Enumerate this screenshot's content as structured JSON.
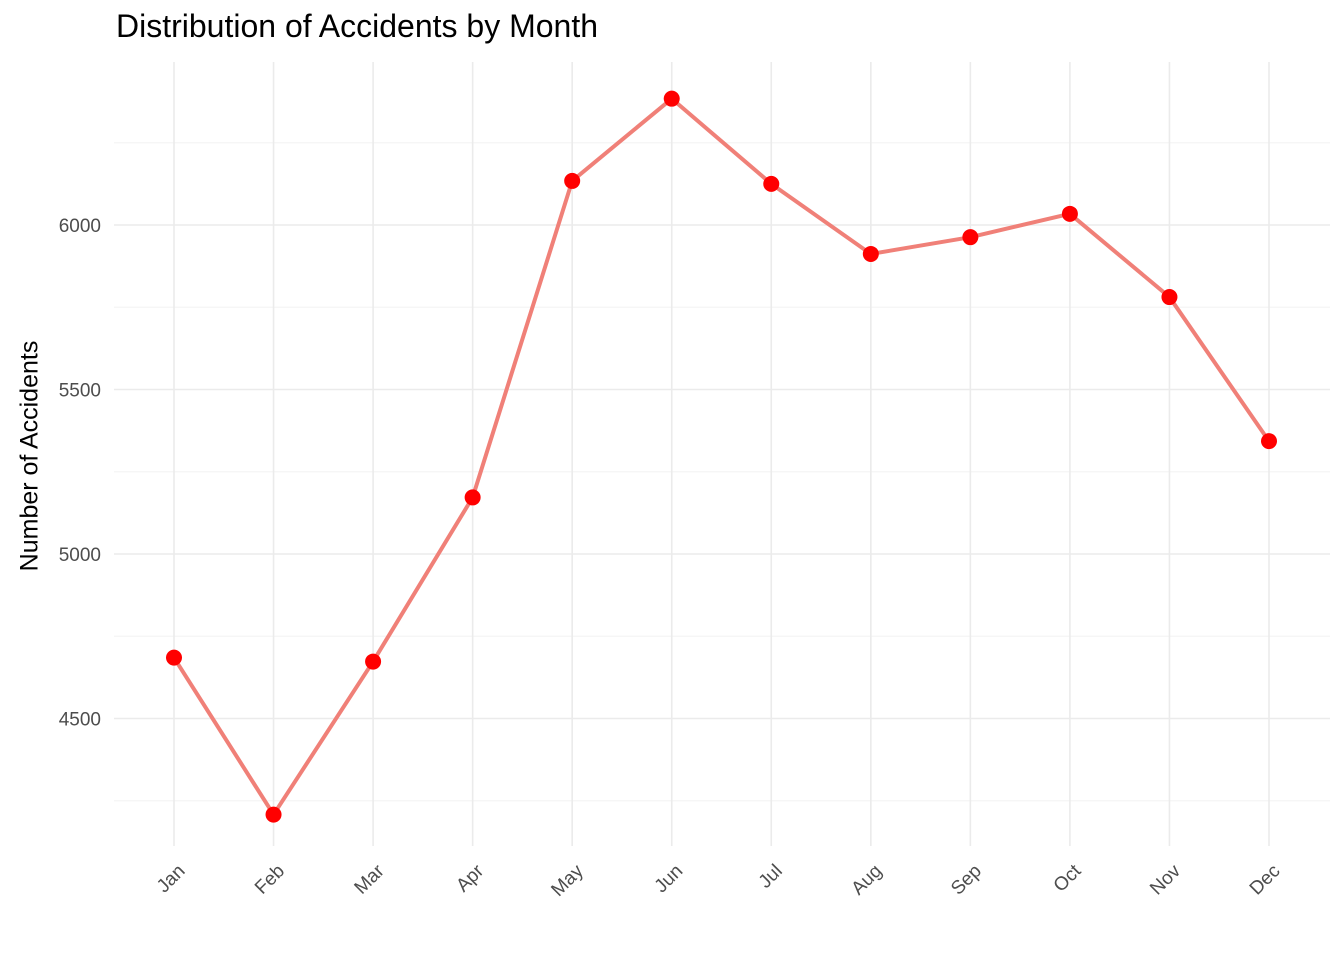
{
  "chart_data": {
    "type": "line",
    "title": "Distribution of Accidents by Month",
    "xlabel": "",
    "ylabel": "Number of Accidents",
    "categories": [
      "Jan",
      "Feb",
      "Mar",
      "Apr",
      "May",
      "Jun",
      "Jul",
      "Aug",
      "Sep",
      "Oct",
      "Nov",
      "Dec"
    ],
    "values": [
      4685,
      4208,
      4673,
      5172,
      6134,
      6384,
      6125,
      5912,
      5963,
      6034,
      5781,
      5343
    ],
    "ylim": [
      4130,
      6490
    ],
    "yticks": [
      4500,
      5000,
      5500,
      6000
    ],
    "grid": true,
    "legend": "none",
    "colors": {
      "line": "#F08078",
      "points": "#FF0000",
      "grid_major": "#EBEBEB",
      "grid_minor": "#F5F5F5"
    }
  }
}
